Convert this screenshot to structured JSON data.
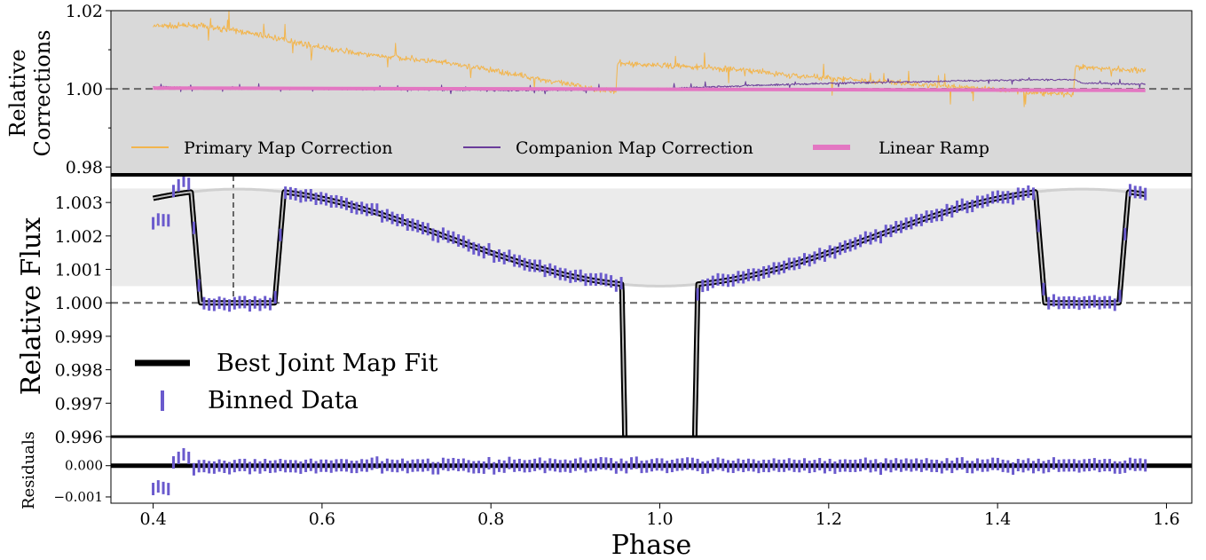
{
  "chart_data": [
    {
      "type": "line",
      "panel": "corrections",
      "ylabel": [
        "Relative",
        "Corrections"
      ],
      "ylim": [
        0.978,
        1.02
      ],
      "xlim": [
        0.35,
        1.63
      ],
      "yticks": [
        1.02,
        1.0,
        0.98
      ],
      "ytick_labels": [
        "1.02",
        "1.00",
        "0.98"
      ],
      "background": "#d9d9d9",
      "reference_line": 1.0,
      "series": [
        {
          "name": "Primary Map Correction",
          "color": "#f2b54d",
          "points": [
            [
              0.4,
              1.016
            ],
            [
              0.45,
              1.0162
            ],
            [
              0.5,
              1.0148
            ],
            [
              0.55,
              1.0128
            ],
            [
              0.6,
              1.0105
            ],
            [
              0.65,
              1.0088
            ],
            [
              0.7,
              1.0078
            ],
            [
              0.75,
              1.0065
            ],
            [
              0.8,
              1.0048
            ],
            [
              0.85,
              1.0028
            ],
            [
              0.9,
              1.0008
            ],
            [
              0.948,
              0.9992
            ],
            [
              0.95,
              1.0065
            ],
            [
              1.0,
              1.006
            ],
            [
              1.05,
              1.0055
            ],
            [
              1.1,
              1.0048
            ],
            [
              1.15,
              1.0035
            ],
            [
              1.2,
              1.0028
            ],
            [
              1.25,
              1.002
            ],
            [
              1.3,
              1.0012
            ],
            [
              1.35,
              1.0005
            ],
            [
              1.4,
              0.9998
            ],
            [
              1.45,
              0.999
            ],
            [
              1.49,
              0.9985
            ],
            [
              1.492,
              1.0055
            ],
            [
              1.52,
              1.0052
            ],
            [
              1.55,
              1.005
            ],
            [
              1.575,
              1.0048
            ]
          ],
          "band": [
            0.4,
            1.575
          ]
        },
        {
          "name": "Companion Map Correction",
          "color": "#6a3d9a",
          "points": [
            [
              0.4,
              1.0005
            ],
            [
              0.5,
              1.0
            ],
            [
              0.6,
              1.0
            ],
            [
              0.7,
              0.9998
            ],
            [
              0.8,
              0.9996
            ],
            [
              0.9,
              0.9997
            ],
            [
              0.95,
              0.9998
            ],
            [
              1.0,
              1.0
            ],
            [
              1.1,
              1.0008
            ],
            [
              1.2,
              1.0014
            ],
            [
              1.3,
              1.0018
            ],
            [
              1.4,
              1.0022
            ],
            [
              1.49,
              1.0024
            ],
            [
              1.5,
              1.0015
            ],
            [
              1.575,
              1.0012
            ]
          ],
          "band": [
            0.4,
            1.575
          ]
        },
        {
          "name": "Linear Ramp",
          "color": "#e377c2",
          "points": [
            [
              0.4,
              1.0002
            ],
            [
              1.575,
              0.9996
            ]
          ]
        }
      ],
      "legend": {
        "position": "bottom",
        "columns": 3
      }
    },
    {
      "type": "line",
      "panel": "flux",
      "ylabel": "Relative Flux",
      "ylim": [
        0.996,
        1.0038
      ],
      "xlim": [
        0.35,
        1.63
      ],
      "yticks": [
        0.996,
        0.997,
        0.998,
        0.999,
        1.0,
        1.001,
        1.002,
        1.003
      ],
      "ytick_labels": [
        "0.996",
        "0.997",
        "0.998",
        "0.999",
        "1.000",
        "1.001",
        "1.002",
        "1.003"
      ],
      "shaded_band": [
        1.0005,
        1.00342
      ],
      "reference_line": 1.0,
      "vertical_marker_x": 0.495,
      "model": {
        "name": "Best Joint Map Fit",
        "phase_curve": {
          "peak": 1.0034,
          "min": 1.0005,
          "peak_phase": 0.5
        },
        "secondary_eclipse": {
          "level": 1.0,
          "windows": [
            [
              0.445,
              0.555
            ],
            [
              1.445,
              1.555
            ]
          ],
          "ingress": 0.011
        },
        "primary_transit": {
          "window": [
            0.955,
            1.045
          ],
          "depth_below": 0.996
        }
      },
      "binned_data": {
        "name": "Binned Data",
        "color": "#6a5acd",
        "x_start": 0.4,
        "x_end": 1.575,
        "n_bins": 196
      },
      "legend": {
        "position": "lower-left"
      }
    },
    {
      "type": "scatter",
      "panel": "residuals",
      "ylabel": "Residuals",
      "ylim": [
        -0.0012,
        0.0009
      ],
      "xlim": [
        0.35,
        1.63
      ],
      "yticks": [
        0.0,
        -0.001
      ],
      "ytick_labels": [
        "0.000",
        "−0.001"
      ],
      "xticks": [
        0.4,
        0.6,
        0.8,
        1.0,
        1.2,
        1.4,
        1.6
      ],
      "xtick_labels": [
        "0.4",
        "0.6",
        "0.8",
        "1.0",
        "1.2",
        "1.4",
        "1.6"
      ],
      "xlabel": "Phase",
      "reference_line": 0.0
    }
  ]
}
